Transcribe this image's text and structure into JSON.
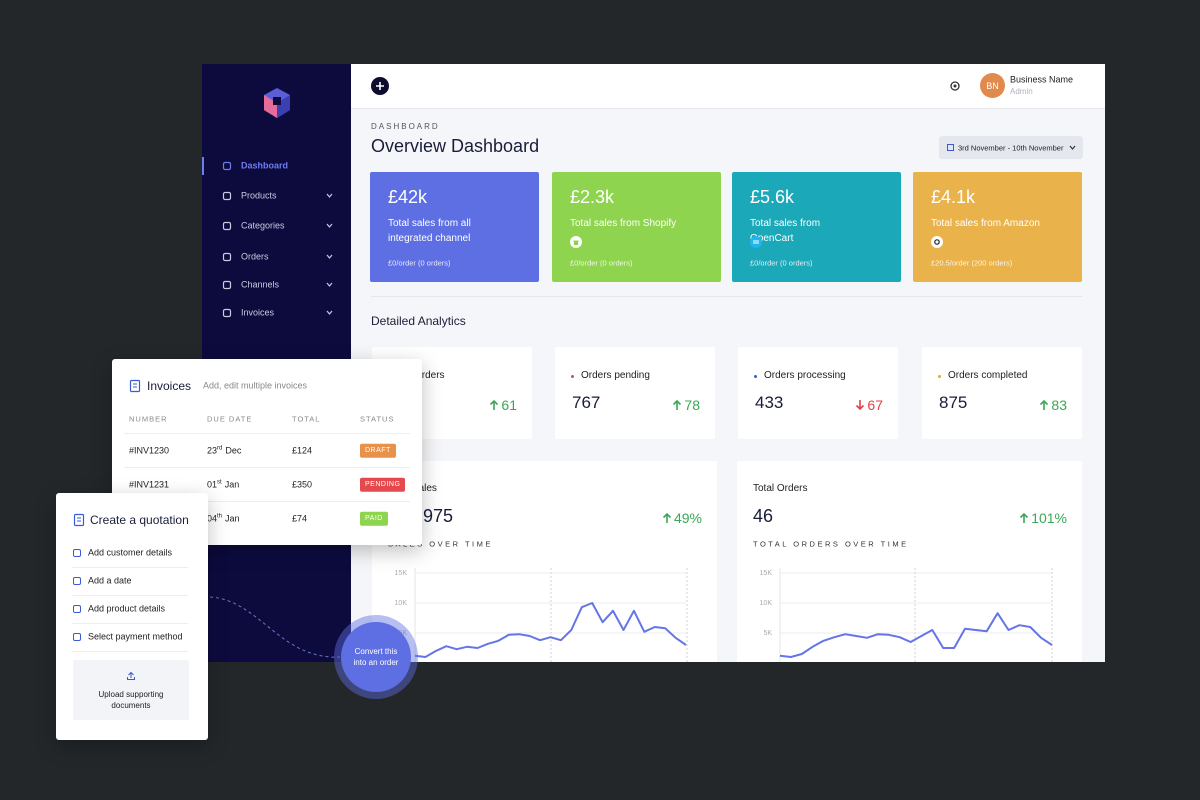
{
  "sidebar": {
    "menu": [
      "Dashboard",
      "Products",
      "Categories",
      "Orders",
      "Channels",
      "Invoices"
    ],
    "active": 0
  },
  "header": {
    "avatar": "BN",
    "business_name": "Business Name",
    "role": "Admin"
  },
  "page": {
    "eyebrow": "DASHBOARD",
    "title": "Overview Dashboard",
    "date_range": "3rd November - 10th November"
  },
  "summary_cards": [
    {
      "value": "£42k",
      "label": "Total sales from all integrated channel",
      "footer": "£0/order (0 orders)",
      "color": "#5d6fe3"
    },
    {
      "value": "£2.3k",
      "label": "Total sales from Shopify",
      "footer": "£0/order (0 orders)",
      "color": "#8ed44f"
    },
    {
      "value": "£5.6k",
      "label": "Total sales from OpenCart",
      "footer": "£0/order (0 orders)",
      "color": "#1ba8b8"
    },
    {
      "value": "£4.1k",
      "label": "Total sales from Amazon",
      "footer": "£20.5/order (200 orders)",
      "color": "#e9b24b"
    }
  ],
  "analytics": {
    "title": "Detailed Analytics",
    "stats": [
      {
        "label": "Orders",
        "change": 61,
        "trend": "up"
      },
      {
        "label": "Orders pending",
        "value": 767,
        "change": 78,
        "trend": "up",
        "dot": "#e5484d"
      },
      {
        "label": "Orders processing",
        "value": 433,
        "change": 67,
        "trend": "down",
        "dot": "#3a5bd8"
      },
      {
        "label": "Orders completed",
        "value": 875,
        "change": 83,
        "trend": "up",
        "dot": "#e8a33d"
      }
    ]
  },
  "chart_data": [
    {
      "type": "line",
      "title": "Total Sales",
      "value": "975",
      "change": "49%",
      "subtitle": "SALES OVER TIME",
      "color": "#6574e6",
      "ylim": [
        0,
        15000
      ],
      "yticks": [
        {
          "value": 5000,
          "label": "5K"
        },
        {
          "value": 10000,
          "label": "10K"
        },
        {
          "value": 15000,
          "label": "15K"
        }
      ],
      "values": [
        1200,
        1000,
        2000,
        2800,
        2300,
        2700,
        2500,
        3200,
        3700,
        4700,
        4800,
        4500,
        3800,
        4300,
        3800,
        5500,
        9300,
        10000,
        6800,
        8700,
        5500,
        8700,
        5200,
        6000,
        5800,
        4200,
        3000
      ]
    },
    {
      "type": "line",
      "title": "Total Orders",
      "value": "46",
      "change": "101%",
      "subtitle": "TOTAL ORDERS OVER TIME",
      "color": "#6574e6",
      "ylim": [
        0,
        15000
      ],
      "yticks": [
        {
          "value": 5000,
          "label": "5K"
        },
        {
          "value": 10000,
          "label": "10K"
        },
        {
          "value": 15000,
          "label": "15K"
        }
      ],
      "values": [
        1200,
        1000,
        1500,
        2700,
        3700,
        4300,
        4800,
        4500,
        4200,
        4800,
        4700,
        4300,
        3500,
        4500,
        5500,
        2500,
        2500,
        5700,
        5500,
        5300,
        8300,
        5500,
        6300,
        6000,
        4200,
        3000
      ]
    }
  ],
  "invoices": {
    "title": "Invoices",
    "subtitle": "Add, edit multiple invoices",
    "columns": [
      "NUMBER",
      "DUE DATE",
      "TOTAL",
      "STATUS"
    ],
    "rows": [
      {
        "number": "#INV1230",
        "day": "23",
        "suffix": "rd",
        "month": "Dec",
        "total": "£124",
        "status": "DRAFT",
        "color": "#e8914a"
      },
      {
        "number": "#INV1231",
        "day": "01",
        "suffix": "st",
        "month": "Jan",
        "total": "£350",
        "status": "PENDING",
        "color": "#e5484d"
      },
      {
        "day": "04",
        "suffix": "th",
        "month": "Jan",
        "total": "£74",
        "status": "PAID",
        "color": "#8ed44f"
      }
    ]
  },
  "quotation": {
    "title": "Create a quotation",
    "items": [
      "Add customer details",
      "Add a date",
      "Add product details",
      "Select payment method"
    ],
    "upload": "Upload supporting documents"
  },
  "convert_button": "Convert this into an order"
}
